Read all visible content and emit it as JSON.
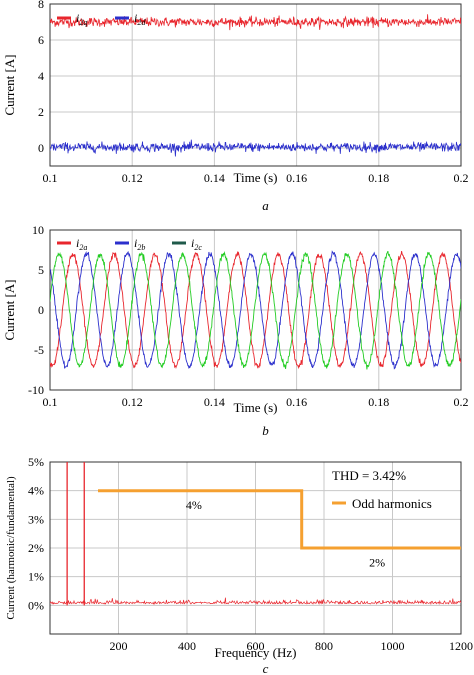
{
  "chart_data": [
    {
      "type": "line",
      "panel_label": "a",
      "xlabel": "Time (s)",
      "ylabel": "Current [A]",
      "xlim": [
        0.1,
        0.2
      ],
      "ylim": [
        -1,
        8
      ],
      "xticks": [
        "0.1",
        "0.12",
        "0.14",
        "0.16",
        "0.18",
        "0.2"
      ],
      "yticks": [
        "0",
        "2",
        "4",
        "6",
        "8"
      ],
      "grid": true,
      "legend_position": "top-left",
      "series": [
        {
          "name": "i2q",
          "legend_main": "i",
          "legend_sub": "2q",
          "color": "#e8262d",
          "mean": 7.0,
          "noise": 0.13
        },
        {
          "name": "i2d",
          "legend_main": "i",
          "legend_sub": "2d",
          "color": "#2b2fcc",
          "mean": 0.05,
          "noise": 0.13
        }
      ]
    },
    {
      "type": "line",
      "panel_label": "b",
      "xlabel": "Time (s)",
      "ylabel": "Current [A]",
      "xlim": [
        0.1,
        0.2
      ],
      "ylim": [
        -10,
        10
      ],
      "xticks": [
        "0.1",
        "0.12",
        "0.14",
        "0.16",
        "0.18",
        "0.2"
      ],
      "yticks": [
        "10",
        "5",
        "0",
        "-5",
        "-10"
      ],
      "grid": true,
      "legend_position": "top-left",
      "frequency_hz": 100,
      "amplitude": 7,
      "series": [
        {
          "name": "i2a",
          "legend_main": "i",
          "legend_sub": "2a",
          "color": "#e8262d",
          "phase_deg": -110
        },
        {
          "name": "i2b",
          "legend_main": "i",
          "legend_sub": "2b",
          "color": "#2b2fcc",
          "phase_deg": -230
        },
        {
          "name": "i2c",
          "legend_main": "i",
          "legend_sub": "2c",
          "color": "#22cc22",
          "legend_color": "#1f5a4a",
          "phase_deg": 10
        }
      ]
    },
    {
      "type": "line",
      "panel_label": "c",
      "xlabel": "Frequency (Hz)",
      "ylabel": "Current (harmonic/fundamental)",
      "xlim": [
        0,
        1200
      ],
      "ylim": [
        -1,
        5
      ],
      "xticks": [
        "200",
        "400",
        "600",
        "800",
        "1000",
        "1200"
      ],
      "yticks": [
        "5%",
        "4%",
        "3%",
        "2%",
        "1%",
        "0%"
      ],
      "grid": true,
      "thd_label": "THD = 3.42%",
      "legend_position": "top-right",
      "limit_series": {
        "name": "Odd harmonics",
        "color": "#f5a030",
        "points": [
          [
            140,
            4
          ],
          [
            735,
            4
          ],
          [
            735,
            2
          ],
          [
            1200,
            2
          ]
        ],
        "labels": [
          {
            "text": "4%",
            "x": 420,
            "y": 3.5
          },
          {
            "text": "2%",
            "x": 955,
            "y": 1.5
          }
        ]
      },
      "spectrum_series": {
        "color": "#e8262d",
        "fundamental_freqs": [
          50,
          100
        ],
        "harmonic_level": 0.08
      }
    }
  ]
}
